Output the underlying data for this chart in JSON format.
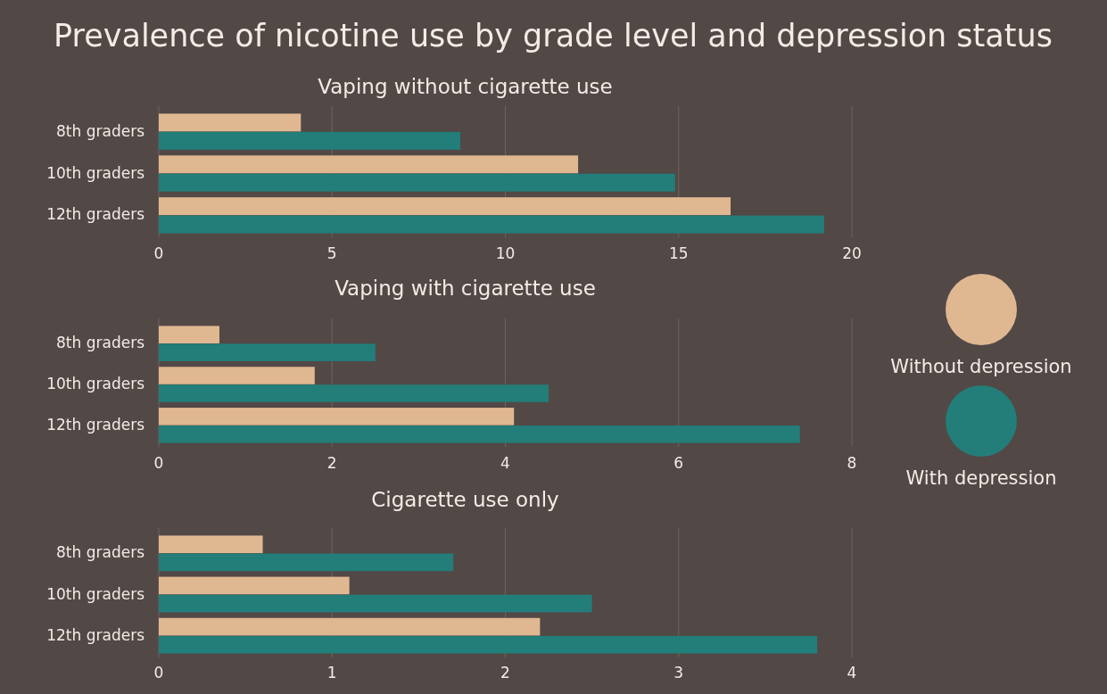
{
  "chart_data": [
    {
      "type": "bar",
      "orientation": "horizontal",
      "title": "Prevalence of nicotine use by grade level and depression status",
      "subtitle": "Vaping without cigarette use",
      "categories": [
        "8th graders",
        "10th graders",
        "12th graders"
      ],
      "series": [
        {
          "color": "#dfb892",
          "values": [
            4.1,
            12.1,
            16.5
          ]
        },
        {
          "color": "#237d78",
          "values": [
            8.7,
            14.9,
            19.2
          ]
        }
      ],
      "xlim": [
        0,
        20
      ],
      "xticks": [
        0,
        5,
        10,
        15,
        20
      ],
      "grid": "x",
      "legend": false
    },
    {
      "type": "bar",
      "orientation": "horizontal",
      "title": "Vaping with cigarette use",
      "categories": [
        "8th graders",
        "10th graders",
        "12th graders"
      ],
      "series": [
        {
          "name": "Without depression",
          "color": "#dfb892",
          "values": [
            0.7,
            1.8,
            4.1
          ]
        },
        {
          "name": "With depression",
          "color": "#237d78",
          "values": [
            2.5,
            4.5,
            7.4
          ]
        }
      ],
      "xlim": [
        0,
        8
      ],
      "xticks": [
        0,
        2,
        4,
        6,
        8
      ],
      "grid": "x",
      "legend": "right"
    },
    {
      "type": "bar",
      "orientation": "horizontal",
      "title": "Cigarette use only",
      "categories": [
        "8th graders",
        "10th graders",
        "12th graders"
      ],
      "series": [
        {
          "color": "#dfb892",
          "values": [
            0.6,
            1.1,
            2.2
          ]
        },
        {
          "color": "#237d78",
          "values": [
            1.7,
            2.5,
            3.8
          ]
        }
      ],
      "xlim": [
        0,
        4
      ],
      "xticks": [
        0,
        1,
        2,
        3,
        4
      ],
      "grid": "x",
      "legend": false
    }
  ]
}
